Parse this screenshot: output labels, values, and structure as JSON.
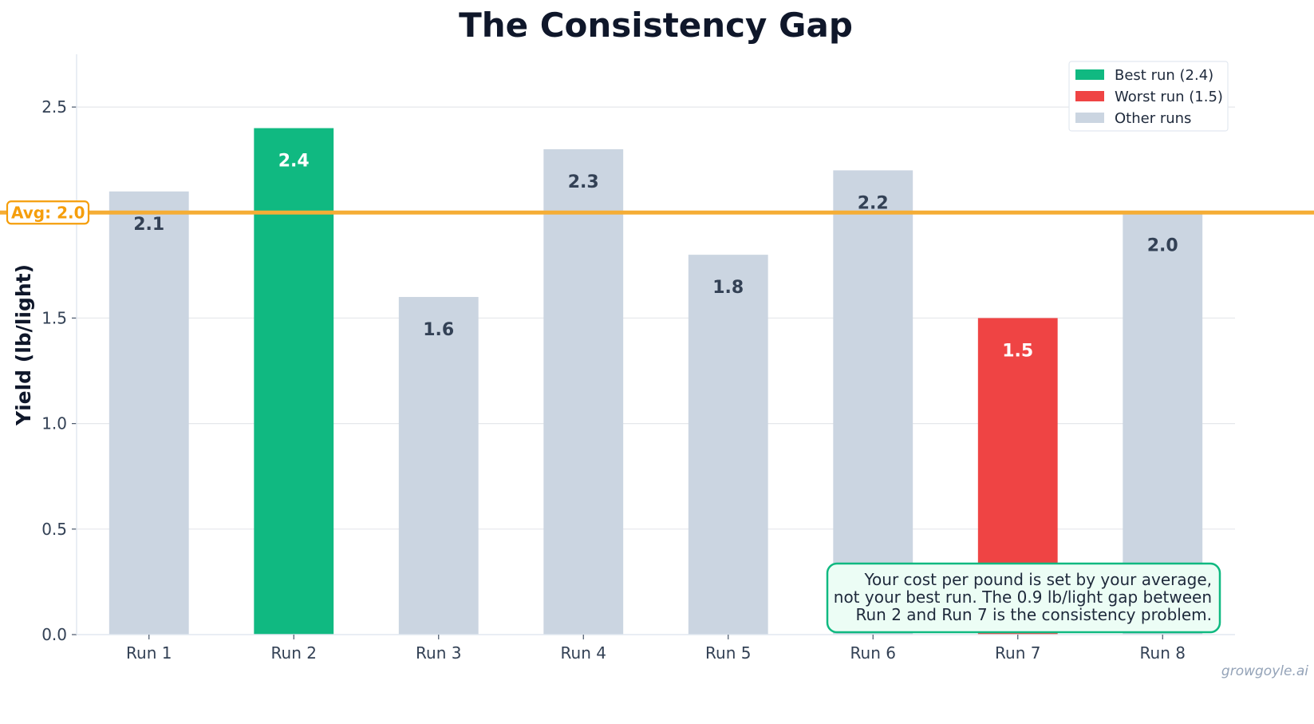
{
  "chart_data": {
    "type": "bar",
    "title": "The Consistency Gap",
    "xlabel": "",
    "ylabel": "Yield (lb/light)",
    "categories": [
      "Run 1",
      "Run 2",
      "Run 3",
      "Run 4",
      "Run 5",
      "Run 6",
      "Run 7",
      "Run 8"
    ],
    "values": [
      2.1,
      2.4,
      1.6,
      2.3,
      1.8,
      2.2,
      1.5,
      2.0
    ],
    "value_labels": [
      "2.1",
      "2.4",
      "1.6",
      "2.3",
      "1.8",
      "2.2",
      "1.5",
      "2.0"
    ],
    "bar_roles": [
      "other",
      "best",
      "other",
      "other",
      "other",
      "other",
      "worst",
      "other"
    ],
    "ylim": [
      0,
      2.75
    ],
    "yticks": [
      0.0,
      0.5,
      1.0,
      1.5,
      2.0,
      2.5
    ],
    "ytick_labels": [
      "0.0",
      "0.5",
      "1.0",
      "1.5",
      "2.0",
      "2.5"
    ],
    "grid": "horizontal",
    "legend_position": "top-right",
    "legend": [
      {
        "label": "Best run (2.4)",
        "color": "#10b981"
      },
      {
        "label": "Worst run (1.5)",
        "color": "#ef4444"
      },
      {
        "label": "Other runs",
        "color": "#cbd5e1"
      }
    ],
    "colors": {
      "best": "#10b981",
      "worst": "#ef4444",
      "other": "#cbd5e1",
      "average": "#f5ad35"
    },
    "average_line": {
      "value": 2.0,
      "label": "Avg: 2.0"
    },
    "annotation": {
      "position": "bottom-right",
      "lines": [
        "Your cost per pound is set by your average,",
        "not your best run. The 0.9 lb/light gap between",
        "Run 2 and Run 7 is the consistency problem."
      ]
    },
    "watermark": "growgoyle.ai"
  }
}
